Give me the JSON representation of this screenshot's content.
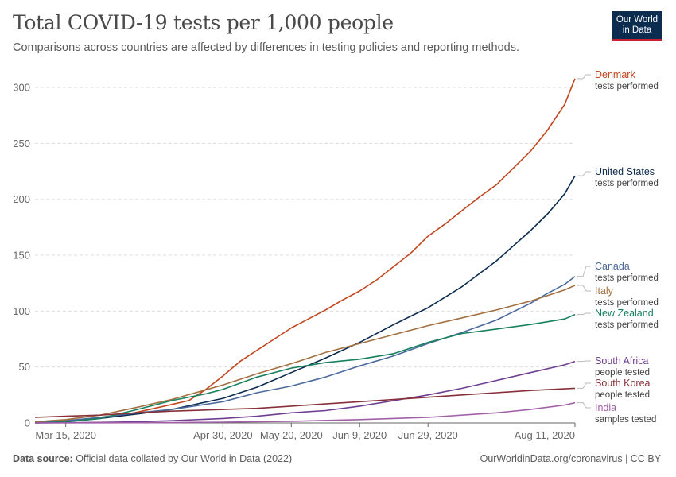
{
  "header": {
    "title": "Total COVID-19 tests per 1,000 people",
    "subtitle": "Comparisons across countries are affected by differences in testing policies and reporting methods.",
    "logo_line1": "Our World",
    "logo_line2": "in Data"
  },
  "footer": {
    "source_label": "Data source:",
    "source_text": " Official data collated by Our World in Data (2022)",
    "right_text": "OurWorldinData.org/coronavirus | CC BY"
  },
  "colors": {
    "grid": "#dddddd",
    "axis": "#666666",
    "tick_text": "#666666"
  },
  "chart_data": {
    "type": "line",
    "title": "Total COVID-19 tests per 1,000 people",
    "xlabel": "",
    "ylabel": "",
    "x_start": "2020-03-06",
    "x_end": "2020-08-11",
    "ylim": [
      0,
      310
    ],
    "yticks": [
      0,
      50,
      100,
      150,
      200,
      250,
      300
    ],
    "xticks": [
      {
        "date": "2020-03-15",
        "label": "Mar 15, 2020"
      },
      {
        "date": "2020-04-30",
        "label": "Apr 30, 2020"
      },
      {
        "date": "2020-05-20",
        "label": "May 20, 2020"
      },
      {
        "date": "2020-06-09",
        "label": "Jun 9, 2020"
      },
      {
        "date": "2020-06-29",
        "label": "Jun 29, 2020"
      },
      {
        "date": "2020-08-11",
        "label": "Aug 11, 2020"
      }
    ],
    "grid": true,
    "legend": "right, labels at line ends",
    "series": [
      {
        "name": "Denmark",
        "sublabel": "tests performed",
        "color": "#c0461e",
        "points": [
          [
            "2020-03-06",
            1
          ],
          [
            "2020-03-21",
            3
          ],
          [
            "2020-04-01",
            7
          ],
          [
            "2020-04-10",
            13
          ],
          [
            "2020-04-20",
            20
          ],
          [
            "2020-04-25",
            30
          ],
          [
            "2020-04-30",
            42
          ],
          [
            "2020-05-05",
            55
          ],
          [
            "2020-05-10",
            65
          ],
          [
            "2020-05-15",
            75
          ],
          [
            "2020-05-20",
            85
          ],
          [
            "2020-05-25",
            93
          ],
          [
            "2020-05-30",
            101
          ],
          [
            "2020-06-04",
            110
          ],
          [
            "2020-06-09",
            118
          ],
          [
            "2020-06-14",
            128
          ],
          [
            "2020-06-19",
            140
          ],
          [
            "2020-06-24",
            152
          ],
          [
            "2020-06-29",
            167
          ],
          [
            "2020-07-04",
            178
          ],
          [
            "2020-07-09",
            190
          ],
          [
            "2020-07-14",
            202
          ],
          [
            "2020-07-19",
            213
          ],
          [
            "2020-07-24",
            228
          ],
          [
            "2020-07-29",
            243
          ],
          [
            "2020-08-03",
            262
          ],
          [
            "2020-08-08",
            285
          ],
          [
            "2020-08-11",
            308
          ]
        ]
      },
      {
        "name": "United States",
        "sublabel": "tests performed",
        "color": "#0b2b4f",
        "points": [
          [
            "2020-03-06",
            0
          ],
          [
            "2020-03-15",
            1
          ],
          [
            "2020-03-25",
            4
          ],
          [
            "2020-04-05",
            8
          ],
          [
            "2020-04-15",
            12
          ],
          [
            "2020-04-30",
            22
          ],
          [
            "2020-05-10",
            32
          ],
          [
            "2020-05-20",
            45
          ],
          [
            "2020-05-30",
            58
          ],
          [
            "2020-06-09",
            72
          ],
          [
            "2020-06-19",
            88
          ],
          [
            "2020-06-29",
            103
          ],
          [
            "2020-07-09",
            122
          ],
          [
            "2020-07-19",
            145
          ],
          [
            "2020-07-29",
            172
          ],
          [
            "2020-08-03",
            187
          ],
          [
            "2020-08-08",
            205
          ],
          [
            "2020-08-11",
            221
          ]
        ]
      },
      {
        "name": "Canada",
        "sublabel": "tests performed",
        "color": "#4c6a9c",
        "points": [
          [
            "2020-03-06",
            1
          ],
          [
            "2020-03-15",
            2
          ],
          [
            "2020-03-25",
            5
          ],
          [
            "2020-04-05",
            9
          ],
          [
            "2020-04-15",
            12
          ],
          [
            "2020-04-30",
            19
          ],
          [
            "2020-05-10",
            27
          ],
          [
            "2020-05-20",
            33
          ],
          [
            "2020-05-30",
            41
          ],
          [
            "2020-06-09",
            51
          ],
          [
            "2020-06-19",
            60
          ],
          [
            "2020-06-29",
            71
          ],
          [
            "2020-07-09",
            81
          ],
          [
            "2020-07-19",
            92
          ],
          [
            "2020-07-29",
            107
          ],
          [
            "2020-08-03",
            116
          ],
          [
            "2020-08-08",
            124
          ],
          [
            "2020-08-11",
            131
          ]
        ]
      },
      {
        "name": "Italy",
        "sublabel": "tests performed",
        "color": "#a2703f",
        "points": [
          [
            "2020-03-06",
            1
          ],
          [
            "2020-03-15",
            3
          ],
          [
            "2020-03-25",
            7
          ],
          [
            "2020-04-05",
            14
          ],
          [
            "2020-04-15",
            21
          ],
          [
            "2020-04-30",
            34
          ],
          [
            "2020-05-10",
            44
          ],
          [
            "2020-05-20",
            53
          ],
          [
            "2020-05-30",
            63
          ],
          [
            "2020-06-09",
            71
          ],
          [
            "2020-06-19",
            79
          ],
          [
            "2020-06-29",
            87
          ],
          [
            "2020-07-09",
            94
          ],
          [
            "2020-07-19",
            101
          ],
          [
            "2020-07-29",
            109
          ],
          [
            "2020-08-03",
            114
          ],
          [
            "2020-08-08",
            119
          ],
          [
            "2020-08-11",
            123
          ]
        ]
      },
      {
        "name": "New Zealand",
        "sublabel": "tests performed",
        "color": "#18805f",
        "points": [
          [
            "2020-03-06",
            0
          ],
          [
            "2020-03-15",
            1
          ],
          [
            "2020-03-25",
            4
          ],
          [
            "2020-04-05",
            12
          ],
          [
            "2020-04-15",
            20
          ],
          [
            "2020-04-25",
            26
          ],
          [
            "2020-04-30",
            30
          ],
          [
            "2020-05-10",
            41
          ],
          [
            "2020-05-20",
            49
          ],
          [
            "2020-05-30",
            54
          ],
          [
            "2020-06-09",
            57
          ],
          [
            "2020-06-19",
            62
          ],
          [
            "2020-06-29",
            72
          ],
          [
            "2020-07-09",
            80
          ],
          [
            "2020-07-19",
            84
          ],
          [
            "2020-07-29",
            88
          ],
          [
            "2020-08-08",
            93
          ],
          [
            "2020-08-11",
            97
          ]
        ]
      },
      {
        "name": "South Africa",
        "sublabel": "people tested",
        "color": "#6d3e91",
        "points": [
          [
            "2020-03-06",
            0
          ],
          [
            "2020-03-25",
            0.5
          ],
          [
            "2020-04-05",
            1
          ],
          [
            "2020-04-15",
            2
          ],
          [
            "2020-04-30",
            4
          ],
          [
            "2020-05-10",
            6
          ],
          [
            "2020-05-20",
            9
          ],
          [
            "2020-05-30",
            11
          ],
          [
            "2020-06-09",
            15
          ],
          [
            "2020-06-19",
            20
          ],
          [
            "2020-06-29",
            25
          ],
          [
            "2020-07-09",
            31
          ],
          [
            "2020-07-19",
            38
          ],
          [
            "2020-07-29",
            45
          ],
          [
            "2020-08-08",
            52
          ],
          [
            "2020-08-11",
            55
          ]
        ]
      },
      {
        "name": "South Korea",
        "sublabel": "people tested",
        "color": "#883039",
        "points": [
          [
            "2020-03-06",
            5
          ],
          [
            "2020-03-15",
            6
          ],
          [
            "2020-03-25",
            7
          ],
          [
            "2020-04-05",
            9
          ],
          [
            "2020-04-15",
            10.5
          ],
          [
            "2020-04-30",
            12
          ],
          [
            "2020-05-10",
            13
          ],
          [
            "2020-05-20",
            15
          ],
          [
            "2020-05-30",
            17
          ],
          [
            "2020-06-09",
            19
          ],
          [
            "2020-06-19",
            21
          ],
          [
            "2020-06-29",
            23
          ],
          [
            "2020-07-09",
            25
          ],
          [
            "2020-07-19",
            27
          ],
          [
            "2020-07-29",
            29
          ],
          [
            "2020-08-08",
            30.5
          ],
          [
            "2020-08-11",
            31
          ]
        ]
      },
      {
        "name": "India",
        "sublabel": "samples tested",
        "color": "#a15fa7",
        "points": [
          [
            "2020-03-06",
            0
          ],
          [
            "2020-04-15",
            0.3
          ],
          [
            "2020-04-30",
            0.7
          ],
          [
            "2020-05-20",
            1.5
          ],
          [
            "2020-06-09",
            3
          ],
          [
            "2020-06-29",
            5
          ],
          [
            "2020-07-19",
            9
          ],
          [
            "2020-07-29",
            12
          ],
          [
            "2020-08-08",
            16
          ],
          [
            "2020-08-11",
            18
          ]
        ]
      }
    ]
  }
}
